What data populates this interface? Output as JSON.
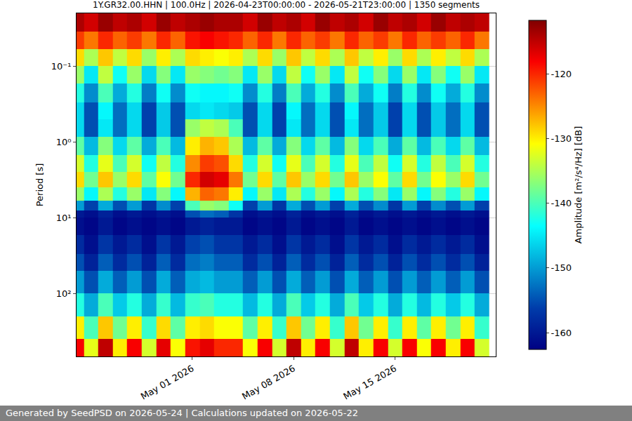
{
  "chart_data": {
    "type": "heatmap",
    "title": "1Y.GR32.00.HHN | 100.0Hz | 2026-04-23T00:00:00 - 2026-05-21T23:00:00 | 1350 segments",
    "ylabel": "Period [s]",
    "colorbar_label": "Amplitude [m²/s⁴/Hz] [dB]",
    "footer": "Generated by SeedPSD on 2026-05-24 | Calculations updated on 2026-05-22",
    "x": [
      "2026-04-23",
      "2026-04-24",
      "2026-04-25",
      "2026-04-26",
      "2026-04-27",
      "2026-04-28",
      "2026-04-29",
      "2026-04-30",
      "2026-05-01",
      "2026-05-02",
      "2026-05-03",
      "2026-05-04",
      "2026-05-05",
      "2026-05-06",
      "2026-05-07",
      "2026-05-08",
      "2026-05-09",
      "2026-05-10",
      "2026-05-11",
      "2026-05-12",
      "2026-05-13",
      "2026-05-14",
      "2026-05-15",
      "2026-05-16",
      "2026-05-17",
      "2026-05-18",
      "2026-05-19",
      "2026-05-20",
      "2026-05-21"
    ],
    "y_edges": [
      0.02,
      0.035,
      0.06,
      0.1,
      0.17,
      0.3,
      0.5,
      0.85,
      1.5,
      2.5,
      4,
      6,
      8,
      10,
      17,
      30,
      50,
      100,
      200,
      400,
      680
    ],
    "cells": [
      [
        -114,
        -116,
        -113,
        -115,
        -114,
        -116,
        -113,
        -115,
        -114,
        -113,
        -114,
        -114,
        -116,
        -113,
        -115,
        -114,
        -116,
        -113,
        -115,
        -114,
        -116,
        -113,
        -115,
        -114,
        -116,
        -113,
        -115,
        -114,
        -115
      ],
      [
        -121,
        -124,
        -120,
        -123,
        -121,
        -124,
        -120,
        -123,
        -119,
        -118,
        -119,
        -120,
        -123,
        -120,
        -124,
        -120,
        -123,
        -121,
        -124,
        -120,
        -123,
        -121,
        -124,
        -120,
        -123,
        -121,
        -123,
        -120,
        -124
      ],
      [
        -129,
        -135,
        -128,
        -134,
        -129,
        -136,
        -130,
        -135,
        -129,
        -130,
        -131,
        -130,
        -135,
        -129,
        -136,
        -128,
        -134,
        -129,
        -135,
        -128,
        -134,
        -130,
        -136,
        -129,
        -135,
        -130,
        -134,
        -129,
        -135
      ],
      [
        -136,
        -145,
        -134,
        -143,
        -136,
        -146,
        -137,
        -145,
        -136,
        -137,
        -138,
        -137,
        -145,
        -136,
        -146,
        -134,
        -143,
        -136,
        -145,
        -134,
        -143,
        -137,
        -146,
        -136,
        -145,
        -137,
        -143,
        -136,
        -145
      ],
      [
        -142,
        -151,
        -140,
        -149,
        -142,
        -152,
        -143,
        -151,
        -143,
        -144,
        -144,
        -143,
        -151,
        -142,
        -152,
        -140,
        -149,
        -142,
        -151,
        -140,
        -149,
        -143,
        -152,
        -142,
        -151,
        -143,
        -149,
        -142,
        -151
      ],
      [
        -146,
        -155,
        -144,
        -153,
        -146,
        -156,
        -147,
        -155,
        -146,
        -145,
        -146,
        -147,
        -155,
        -146,
        -156,
        -144,
        -153,
        -146,
        -155,
        -144,
        -153,
        -147,
        -156,
        -146,
        -155,
        -147,
        -153,
        -146,
        -155
      ],
      [
        -146,
        -155,
        -145,
        -153,
        -146,
        -156,
        -147,
        -155,
        -136,
        -134,
        -135,
        -140,
        -155,
        -146,
        -156,
        -145,
        -153,
        -146,
        -155,
        -145,
        -153,
        -147,
        -156,
        -146,
        -155,
        -147,
        -153,
        -146,
        -155
      ],
      [
        -139,
        -148,
        -137,
        -146,
        -139,
        -149,
        -140,
        -148,
        -130,
        -127,
        -128,
        -135,
        -148,
        -139,
        -149,
        -137,
        -146,
        -139,
        -148,
        -137,
        -146,
        -140,
        -149,
        -139,
        -148,
        -140,
        -146,
        -139,
        -148
      ],
      [
        -133,
        -142,
        -132,
        -140,
        -133,
        -143,
        -134,
        -142,
        -125,
        -121,
        -122,
        -129,
        -142,
        -133,
        -143,
        -132,
        -140,
        -133,
        -142,
        -132,
        -140,
        -134,
        -143,
        -133,
        -142,
        -134,
        -140,
        -133,
        -142
      ],
      [
        -129,
        -138,
        -128,
        -136,
        -129,
        -139,
        -131,
        -138,
        -120,
        -116,
        -117,
        -124,
        -138,
        -129,
        -139,
        -128,
        -136,
        -129,
        -138,
        -128,
        -136,
        -131,
        -139,
        -129,
        -138,
        -131,
        -136,
        -129,
        -138
      ],
      [
        -136,
        -144,
        -135,
        -142,
        -136,
        -145,
        -137,
        -144,
        -127,
        -123,
        -124,
        -130,
        -144,
        -136,
        -145,
        -135,
        -142,
        -136,
        -144,
        -135,
        -142,
        -137,
        -145,
        -136,
        -144,
        -137,
        -142,
        -136,
        -144
      ],
      [
        -150,
        -156,
        -149,
        -155,
        -150,
        -157,
        -151,
        -156,
        -140,
        -136,
        -137,
        -143,
        -156,
        -150,
        -157,
        -149,
        -155,
        -150,
        -156,
        -149,
        -155,
        -151,
        -157,
        -150,
        -156,
        -151,
        -155,
        -150,
        -156
      ],
      [
        -160,
        -161,
        -159,
        -161,
        -160,
        -161,
        -160,
        -161,
        -155,
        -153,
        -154,
        -157,
        -161,
        -160,
        -161,
        -159,
        -161,
        -160,
        -161,
        -159,
        -161,
        -160,
        -161,
        -160,
        -161,
        -160,
        -161,
        -160,
        -161
      ],
      [
        -161,
        -162,
        -160,
        -162,
        -161,
        -162,
        -161,
        -162,
        -160,
        -159,
        -160,
        -160,
        -162,
        -161,
        -162,
        -160,
        -162,
        -161,
        -162,
        -160,
        -162,
        -161,
        -162,
        -161,
        -162,
        -161,
        -162,
        -161,
        -162
      ],
      [
        -158,
        -161,
        -157,
        -160,
        -158,
        -161,
        -157,
        -160,
        -156,
        -155,
        -157,
        -157,
        -160,
        -158,
        -161,
        -157,
        -160,
        -158,
        -161,
        -157,
        -160,
        -158,
        -161,
        -158,
        -160,
        -158,
        -160,
        -158,
        -161
      ],
      [
        -155,
        -159,
        -154,
        -158,
        -155,
        -159,
        -154,
        -158,
        -153,
        -152,
        -154,
        -154,
        -158,
        -155,
        -159,
        -154,
        -158,
        -155,
        -159,
        -154,
        -158,
        -155,
        -159,
        -155,
        -158,
        -155,
        -158,
        -155,
        -159
      ],
      [
        -150,
        -155,
        -149,
        -154,
        -150,
        -155,
        -149,
        -154,
        -149,
        -148,
        -150,
        -150,
        -154,
        -150,
        -155,
        -149,
        -154,
        -150,
        -155,
        -149,
        -154,
        -150,
        -155,
        -150,
        -154,
        -150,
        -154,
        -150,
        -155
      ],
      [
        -142,
        -149,
        -140,
        -147,
        -142,
        -149,
        -141,
        -148,
        -141,
        -140,
        -142,
        -142,
        -148,
        -142,
        -149,
        -140,
        -147,
        -142,
        -149,
        -140,
        -147,
        -142,
        -149,
        -142,
        -148,
        -142,
        -147,
        -142,
        -149
      ],
      [
        -130,
        -140,
        -128,
        -138,
        -130,
        -141,
        -129,
        -139,
        -130,
        -129,
        -131,
        -131,
        -139,
        -130,
        -141,
        -128,
        -138,
        -130,
        -141,
        -128,
        -138,
        -130,
        -141,
        -130,
        -139,
        -130,
        -138,
        -130,
        -141
      ],
      [
        -118,
        -132,
        -115,
        -130,
        -118,
        -133,
        -117,
        -131,
        -119,
        -117,
        -120,
        -120,
        -131,
        -118,
        -133,
        -115,
        -130,
        -118,
        -133,
        -115,
        -130,
        -118,
        -133,
        -118,
        -131,
        -118,
        -130,
        -118,
        -133
      ]
    ],
    "xlim": [
      "2026-04-23T00:00:00",
      "2026-05-21T23:00:00"
    ],
    "xticks": [
      {
        "value": "2026-05-01",
        "label": "May 01 2026"
      },
      {
        "value": "2026-05-08",
        "label": "May 08 2026"
      },
      {
        "value": "2026-05-15",
        "label": "May 15 2026"
      }
    ],
    "ylim": [
      680,
      0.02
    ],
    "yticks": [
      {
        "value": 0.1,
        "label": "10⁻¹"
      },
      {
        "value": 1,
        "label": "10⁰"
      },
      {
        "value": 10,
        "label": "10¹"
      },
      {
        "value": 100,
        "label": "10²"
      }
    ],
    "zlim": [
      -162.6,
      -111.7
    ],
    "zticks": [
      -160,
      -150,
      -140,
      -130,
      -120
    ],
    "log": "y",
    "grid": true
  }
}
